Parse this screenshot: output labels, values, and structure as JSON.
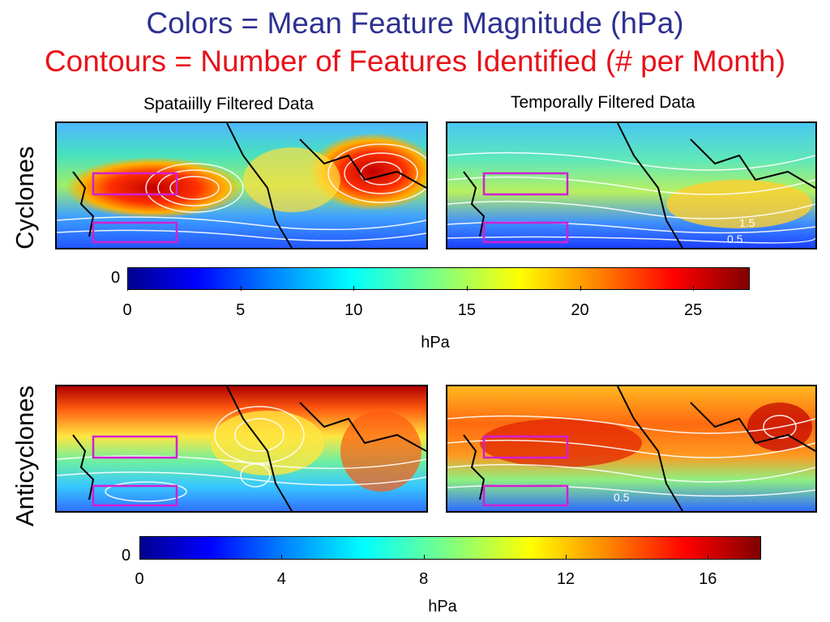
{
  "titles": {
    "colors_line": "Colors = Mean Feature Magnitude (hPa)",
    "contours_line": "Contours = Number of Features Identified (# per Month)"
  },
  "columns": {
    "left": "Spataiilly Filtered Data",
    "right": "Temporally Filtered Data"
  },
  "rows": {
    "top": "Cyclones",
    "bottom": "Anticyclones"
  },
  "cyclone_colorbar": {
    "zero_label": "0",
    "ticks": [
      "0",
      "5",
      "10",
      "15",
      "20",
      "25"
    ],
    "tick_values": [
      0,
      5,
      10,
      15,
      20,
      25
    ],
    "range": [
      0,
      27.5
    ],
    "unit": "hPa"
  },
  "anticyclone_colorbar": {
    "zero_label": "0",
    "ticks": [
      "0",
      "4",
      "8",
      "12",
      "16"
    ],
    "tick_values": [
      0,
      4,
      8,
      12,
      16
    ],
    "range": [
      0,
      17.5
    ],
    "unit": "hPa"
  },
  "contour_labels": {
    "cyclone_temporal": [
      "1.5",
      "0.5"
    ],
    "anticyclone_temporal": [
      "0.5"
    ]
  },
  "colors": {
    "title_blue": "#2e3192",
    "title_red": "#e8121a",
    "box_magenta": "#d21fd2",
    "contour": "#ffffff"
  }
}
